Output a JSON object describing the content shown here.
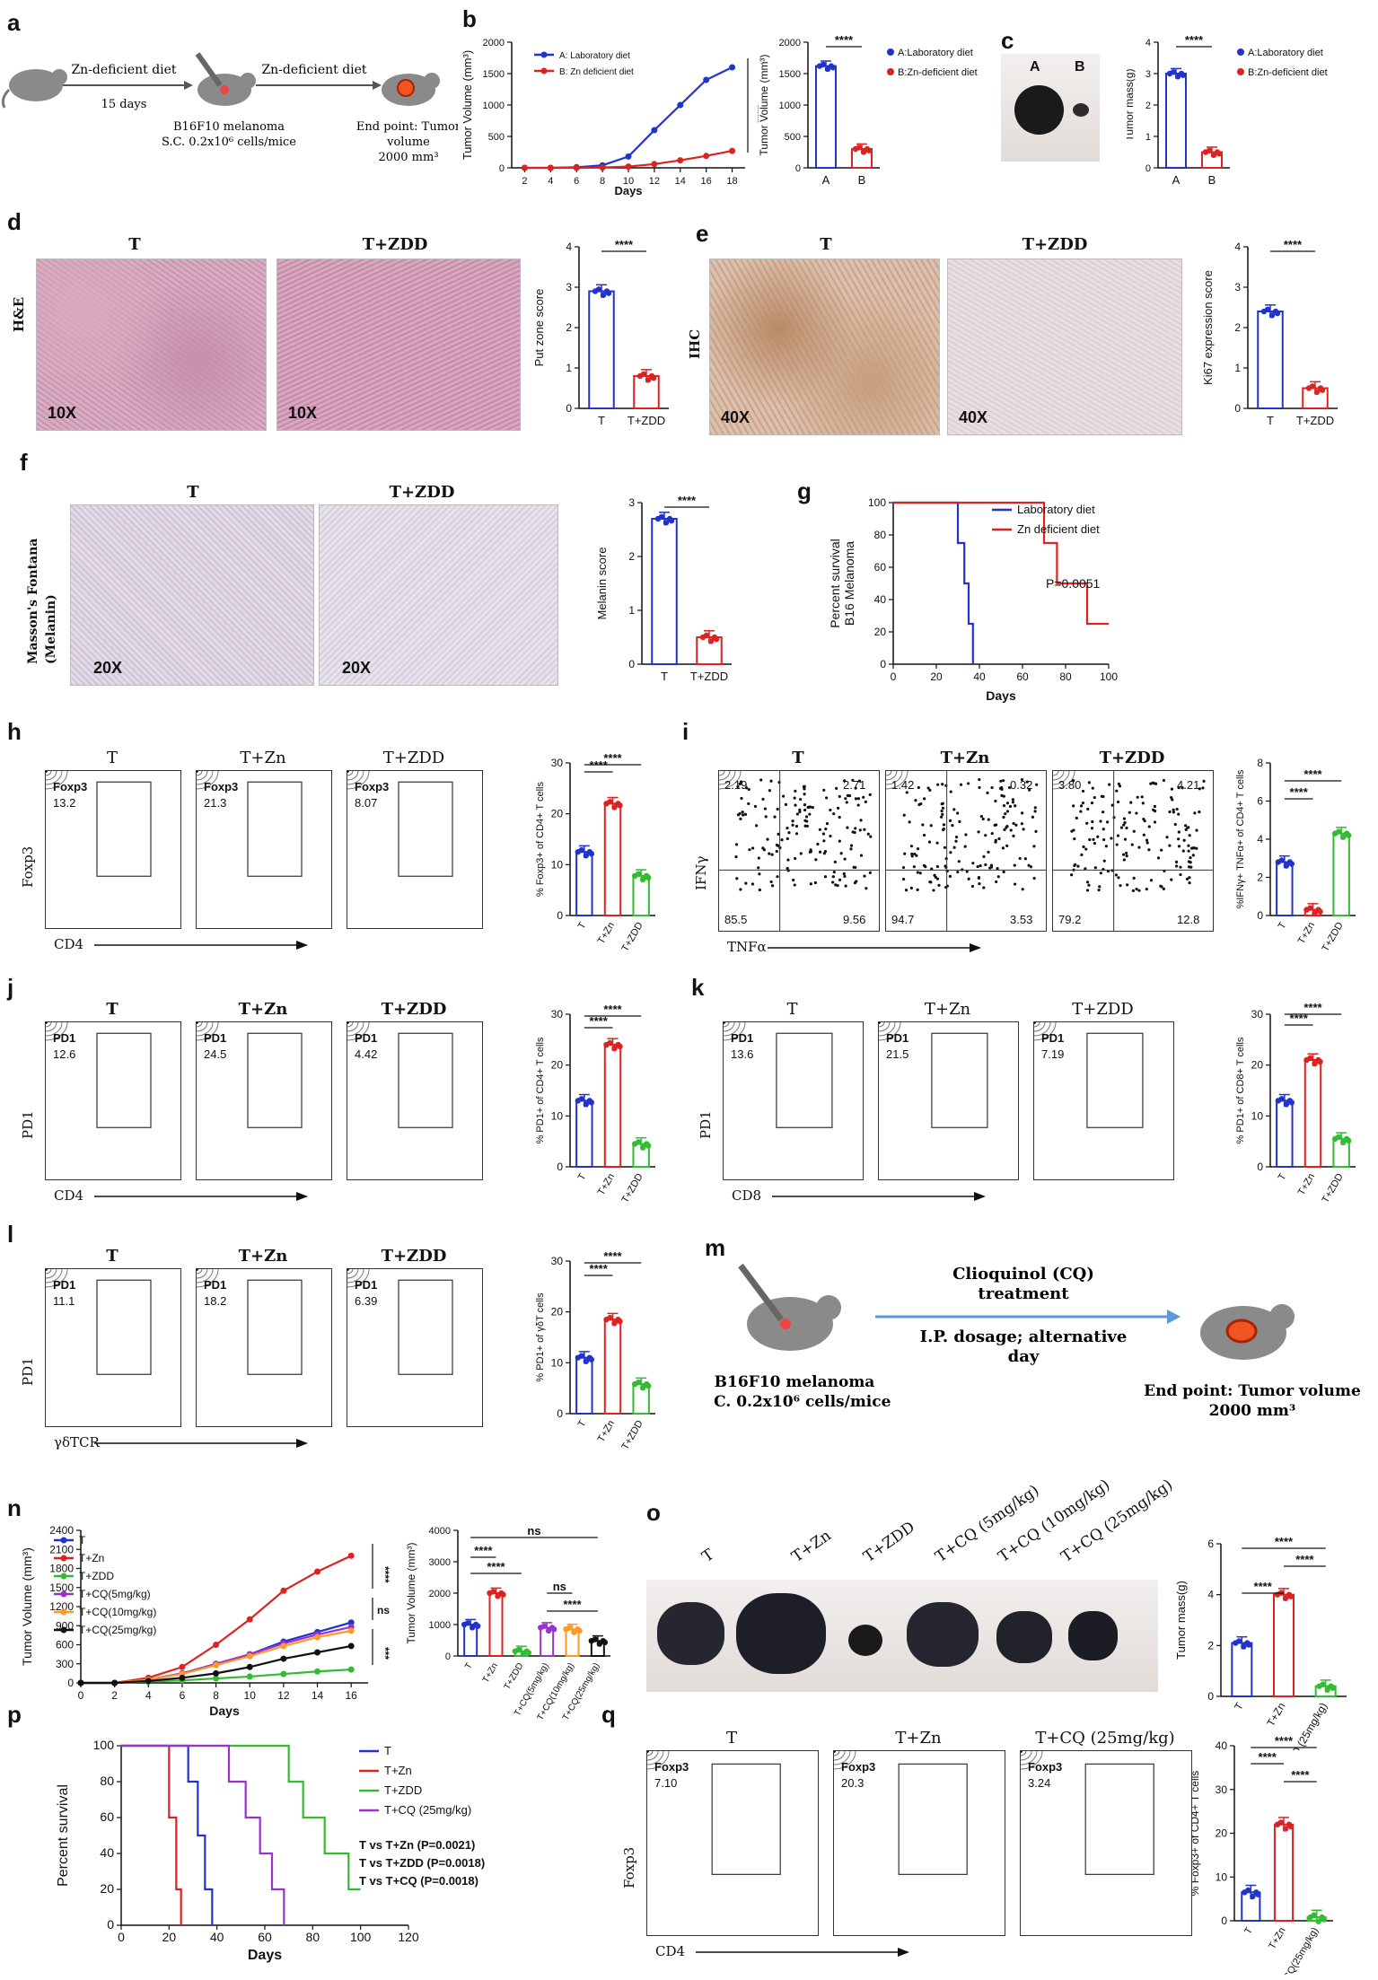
{
  "labels": {
    "a": "a",
    "b": "b",
    "c": "c",
    "d": "d",
    "e": "e",
    "f": "f",
    "g": "g",
    "h": "h",
    "i": "i",
    "j": "j",
    "k": "k",
    "l": "l",
    "m": "m",
    "n": "n",
    "o": "o",
    "p": "p",
    "q": "q"
  },
  "panel_a": {
    "step1": "Zn-deficient diet",
    "step1_dur": "15 days",
    "step2": "Zn-deficient diet",
    "inj1": "B16F10 melanoma",
    "inj2": "S.C. 0.2x10⁶ cells/mice",
    "end1": "End point: Tumor",
    "end2": "volume",
    "end3": "2000 mm³"
  },
  "panel_m": {
    "drug1": "Clioquinol (CQ)",
    "drug2": "treatment",
    "route1": "I.P. dosage; alternative",
    "route2": "day",
    "inj1": "B16F10 melanoma",
    "inj2": "S.C. 0.2x10⁶ cells/mice",
    "end1": "End point: Tumor volume",
    "end2": "2000 mm³"
  },
  "histology": {
    "d": {
      "row": "H&E",
      "t": "T",
      "t2": "T+ZDD",
      "mag1": "10X",
      "mag2": "10X"
    },
    "e": {
      "row": "IHC",
      "t": "T",
      "t2": "T+ZDD",
      "mag1": "40X",
      "mag2": "40X"
    },
    "f": {
      "row": "Masson's Fontana\n(Melanin)",
      "t": "T",
      "t2": "T+ZDD",
      "mag1": "20X",
      "mag2": "20X"
    },
    "c_photo": {
      "A": "A",
      "B": "B"
    },
    "o_photo": [
      "T",
      "T+Zn",
      "T+ZDD",
      "T+CQ (5mg/kg)",
      "T+CQ (10mg/kg)",
      "T+CQ (25mg/kg)"
    ]
  },
  "flow": {
    "h": {
      "titles": [
        "T",
        "T+Zn",
        "T+ZDD"
      ],
      "gate": "Foxp3",
      "values": [
        "13.2",
        "21.3",
        "8.07"
      ],
      "yaxis": "Foxp3",
      "xaxis": "CD4"
    },
    "i": {
      "titles": [
        "T",
        "T+Zn",
        "T+ZDD"
      ],
      "quads": [
        [
          "2.19",
          "2.71",
          "85.5",
          "9.56"
        ],
        [
          "1.42",
          "0.32",
          "94.7",
          "3.53"
        ],
        [
          "3.80",
          "4.21",
          "79.2",
          "12.8"
        ]
      ],
      "yaxis": "IFNγ",
      "xaxis": "TNFα"
    },
    "j": {
      "titles": [
        "T",
        "T+Zn",
        "T+ZDD"
      ],
      "gate": "PD1",
      "values": [
        "12.6",
        "24.5",
        "4.42"
      ],
      "yaxis": "PD1",
      "xaxis": "CD4"
    },
    "k": {
      "titles": [
        "T",
        "T+Zn",
        "T+ZDD"
      ],
      "gate": "PD1",
      "values": [
        "13.6",
        "21.5",
        "7.19"
      ],
      "yaxis": "PD1",
      "xaxis": "CD8"
    },
    "l": {
      "titles": [
        "T",
        "T+Zn",
        "T+ZDD"
      ],
      "gate": "PD1",
      "values": [
        "11.1",
        "18.2",
        "6.39"
      ],
      "yaxis": "PD1",
      "xaxis": "γδTCR"
    },
    "q": {
      "titles": [
        "T",
        "T+Zn",
        "T+CQ (25mg/kg)"
      ],
      "gate": "Foxp3",
      "values": [
        "7.10",
        "20.3",
        "3.24"
      ],
      "yaxis": "Foxp3",
      "xaxis": "CD4"
    }
  },
  "colors": {
    "blue": "#2233cc",
    "red": "#dd2222",
    "green": "#33bb33",
    "purple": "#9933cc",
    "orange": "#ff9922",
    "black": "#111111"
  },
  "chart_data": [
    {
      "id": "b1",
      "type": "line",
      "xlabel": "Days",
      "ylabel": "Tumor Volume (mm³)",
      "x": [
        2,
        4,
        6,
        8,
        10,
        12,
        14,
        16,
        18
      ],
      "xlim": [
        1,
        19
      ],
      "ylim": [
        0,
        2000
      ],
      "yticks": [
        0,
        500,
        1000,
        1500,
        2000
      ],
      "series": [
        {
          "name": "A: Laboratory diet",
          "color": "#2233cc",
          "values": [
            0,
            0,
            10,
            40,
            180,
            600,
            1000,
            1400,
            1600
          ]
        },
        {
          "name": "B: Zn deficient diet",
          "color": "#dd2222",
          "values": [
            0,
            0,
            0,
            5,
            20,
            60,
            120,
            190,
            270
          ]
        }
      ],
      "annotation": "****"
    },
    {
      "id": "b2",
      "type": "bar",
      "ylabel": "Tumor Volume (mm³)",
      "categories": [
        "A",
        "B"
      ],
      "values": [
        1620,
        300
      ],
      "colors": [
        "#2233cc",
        "#dd2222"
      ],
      "ylim": [
        0,
        2000
      ],
      "yticks": [
        0,
        500,
        1000,
        1500,
        2000
      ],
      "legend": [
        "A:Laboratory diet",
        "B:Zn-deficient diet"
      ],
      "annotation": "****"
    },
    {
      "id": "c",
      "type": "bar",
      "ylabel": "Tumor mass(g)",
      "categories": [
        "A",
        "B"
      ],
      "values": [
        3.0,
        0.5
      ],
      "colors": [
        "#2233cc",
        "#dd2222"
      ],
      "ylim": [
        0,
        4
      ],
      "yticks": [
        0,
        1,
        2,
        3,
        4
      ],
      "legend": [
        "A:Laboratory diet",
        "B:Zn-deficient diet"
      ],
      "annotation": "****"
    },
    {
      "id": "d",
      "type": "bar",
      "ylabel": "Put zone score",
      "categories": [
        "T",
        "T+ZDD"
      ],
      "values": [
        2.9,
        0.8
      ],
      "colors": [
        "#2233cc",
        "#dd2222"
      ],
      "ylim": [
        0,
        4
      ],
      "yticks": [
        0,
        1,
        2,
        3,
        4
      ],
      "annotation": "****"
    },
    {
      "id": "e",
      "type": "bar",
      "ylabel": "Ki67 expression score",
      "categories": [
        "T",
        "T+ZDD"
      ],
      "values": [
        2.4,
        0.5
      ],
      "colors": [
        "#2233cc",
        "#dd2222"
      ],
      "ylim": [
        0,
        4
      ],
      "yticks": [
        0,
        1,
        2,
        3,
        4
      ],
      "annotation": "****"
    },
    {
      "id": "f",
      "type": "bar",
      "ylabel": "Melanin score",
      "categories": [
        "T",
        "T+ZDD"
      ],
      "values": [
        2.7,
        0.5
      ],
      "colors": [
        "#2233cc",
        "#dd2222"
      ],
      "ylim": [
        0,
        3
      ],
      "yticks": [
        0,
        1,
        2,
        3
      ],
      "annotation": "****"
    },
    {
      "id": "g",
      "type": "line",
      "step": true,
      "xlabel": "Days",
      "ylabel": "Percent survival\nB16 Melanoma",
      "xlim": [
        0,
        100
      ],
      "ylim": [
        0,
        100
      ],
      "xticks": [
        0,
        20,
        40,
        60,
        80,
        100
      ],
      "yticks": [
        0,
        20,
        40,
        60,
        80,
        100
      ],
      "series": [
        {
          "name": "Laboratory diet",
          "color": "#2233cc",
          "x": [
            0,
            30,
            30,
            33,
            33,
            35,
            35,
            37,
            37
          ],
          "y": [
            100,
            100,
            75,
            75,
            50,
            50,
            25,
            25,
            0
          ]
        },
        {
          "name": "Zn deficient diet",
          "color": "#dd2222",
          "x": [
            0,
            70,
            70,
            76,
            76,
            90,
            90,
            100
          ],
          "y": [
            100,
            100,
            75,
            75,
            50,
            50,
            25,
            25
          ]
        }
      ],
      "annotation": "P=0.0051"
    },
    {
      "id": "h",
      "type": "bar",
      "ylabel": "% Foxp3+ of CD4+ T cells",
      "categories": [
        "T",
        "T+Zn",
        "T+ZDD"
      ],
      "values": [
        12.5,
        22,
        7.8
      ],
      "colors": [
        "#2233cc",
        "#dd2222",
        "#33bb33"
      ],
      "ylim": [
        0,
        30
      ],
      "yticks": [
        0,
        10,
        20,
        30
      ],
      "annotation": "****"
    },
    {
      "id": "i",
      "type": "bar",
      "ylabel": "%IFNγ+ TNFα+ of CD4+ T cells",
      "categories": [
        "T",
        "T+Zn",
        "T+ZDD"
      ],
      "values": [
        2.8,
        0.3,
        4.3
      ],
      "colors": [
        "#2233cc",
        "#dd2222",
        "#33bb33"
      ],
      "ylim": [
        0,
        8
      ],
      "yticks": [
        0,
        2,
        4,
        6,
        8
      ],
      "annotation": "****"
    },
    {
      "id": "j",
      "type": "bar",
      "ylabel": "% PD1+ of CD4+ T cells",
      "categories": [
        "T",
        "T+Zn",
        "T+ZDD"
      ],
      "values": [
        13,
        24,
        4.5
      ],
      "colors": [
        "#2233cc",
        "#dd2222",
        "#33bb33"
      ],
      "ylim": [
        0,
        30
      ],
      "yticks": [
        0,
        10,
        20,
        30
      ],
      "annotation": "****"
    },
    {
      "id": "k",
      "type": "bar",
      "ylabel": "% PD1+ of CD8+ T cells",
      "categories": [
        "T",
        "T+Zn",
        "T+ZDD"
      ],
      "values": [
        13,
        21,
        5.5
      ],
      "colors": [
        "#2233cc",
        "#dd2222",
        "#33bb33"
      ],
      "ylim": [
        0,
        30
      ],
      "yticks": [
        0,
        10,
        20,
        30
      ],
      "annotation": "****"
    },
    {
      "id": "l",
      "type": "bar",
      "ylabel": "% PD1+ of γδT cells",
      "categories": [
        "T",
        "T+Zn",
        "T+ZDD"
      ],
      "values": [
        11,
        18.5,
        5.8
      ],
      "colors": [
        "#2233cc",
        "#dd2222",
        "#33bb33"
      ],
      "ylim": [
        0,
        30
      ],
      "yticks": [
        0,
        10,
        20,
        30
      ],
      "annotation": "****"
    },
    {
      "id": "n1",
      "type": "line",
      "xlabel": "Days",
      "ylabel": "Tumor Volume (mm³)",
      "x": [
        0,
        2,
        4,
        6,
        8,
        10,
        12,
        14,
        16
      ],
      "xlim": [
        0,
        17
      ],
      "ylim": [
        0,
        2400
      ],
      "yticks": [
        0,
        300,
        600,
        900,
        1200,
        1500,
        1800,
        2100,
        2400
      ],
      "series": [
        {
          "name": "T",
          "color": "#2233cc",
          "values": [
            0,
            0,
            50,
            150,
            300,
            450,
            650,
            800,
            950
          ]
        },
        {
          "name": "T+Zn",
          "color": "#dd2222",
          "values": [
            0,
            0,
            80,
            250,
            600,
            1000,
            1450,
            1750,
            2000
          ]
        },
        {
          "name": "T+ZDD",
          "color": "#33bb33",
          "values": [
            0,
            0,
            20,
            40,
            70,
            100,
            140,
            180,
            210
          ]
        },
        {
          "name": "T+CQ(5mg/kg)",
          "color": "#9933cc",
          "values": [
            0,
            0,
            50,
            150,
            300,
            450,
            620,
            760,
            880
          ]
        },
        {
          "name": "T+CQ(10mg/kg)",
          "color": "#ff9922",
          "values": [
            0,
            0,
            50,
            140,
            280,
            420,
            580,
            720,
            820
          ]
        },
        {
          "name": "T+CQ(25mg/kg)",
          "color": "#111111",
          "values": [
            0,
            0,
            30,
            80,
            150,
            250,
            380,
            480,
            580
          ]
        }
      ],
      "annotations": [
        "****",
        "ns",
        "***"
      ]
    },
    {
      "id": "n2",
      "type": "bar",
      "ylabel": "Tumor Volume (mm³)",
      "categories": [
        "T",
        "T+Zn",
        "T+ZDD",
        "T+CQ(5mg/kg)",
        "T+CQ(10mg/kg)",
        "T+CQ(25mg/kg)"
      ],
      "values": [
        1000,
        2000,
        150,
        900,
        850,
        480
      ],
      "colors": [
        "#2233cc",
        "#dd2222",
        "#33bb33",
        "#9933cc",
        "#ff9922",
        "#111111"
      ],
      "ylim": [
        0,
        4000
      ],
      "yticks": [
        0,
        1000,
        2000,
        3000,
        4000
      ],
      "annotations": [
        "ns",
        "****",
        "****",
        "ns",
        "****"
      ]
    },
    {
      "id": "o",
      "type": "bar",
      "ylabel": "Tumor mass(g)",
      "categories": [
        "T",
        "T+Zn",
        "T+CQ (25mg/kg)"
      ],
      "values": [
        2.1,
        4.0,
        0.4
      ],
      "colors": [
        "#2233cc",
        "#dd2222",
        "#33bb33"
      ],
      "ylim": [
        0,
        6
      ],
      "yticks": [
        0,
        2,
        4,
        6
      ],
      "annotation": "****"
    },
    {
      "id": "p",
      "type": "line",
      "step": true,
      "xlabel": "Days",
      "ylabel": "Percent survival",
      "xlim": [
        0,
        120
      ],
      "ylim": [
        0,
        100
      ],
      "xticks": [
        0,
        20,
        40,
        60,
        80,
        100,
        120
      ],
      "yticks": [
        0,
        20,
        40,
        60,
        80,
        100
      ],
      "series": [
        {
          "name": "T",
          "color": "#2233cc",
          "x": [
            0,
            28,
            28,
            32,
            32,
            35,
            35,
            38,
            38
          ],
          "y": [
            100,
            100,
            80,
            80,
            50,
            50,
            20,
            20,
            0
          ]
        },
        {
          "name": "T+Zn",
          "color": "#dd2222",
          "x": [
            0,
            20,
            20,
            23,
            23,
            25,
            25
          ],
          "y": [
            100,
            100,
            60,
            60,
            20,
            20,
            0
          ]
        },
        {
          "name": "T+ZDD",
          "color": "#33bb33",
          "x": [
            0,
            70,
            70,
            76,
            76,
            85,
            85,
            95,
            95,
            100
          ],
          "y": [
            100,
            100,
            80,
            80,
            60,
            60,
            40,
            40,
            20,
            20
          ]
        },
        {
          "name": "T+CQ (25mg/kg)",
          "color": "#9933cc",
          "x": [
            0,
            45,
            45,
            52,
            52,
            58,
            58,
            63,
            63,
            68,
            68
          ],
          "y": [
            100,
            100,
            80,
            80,
            60,
            60,
            40,
            40,
            20,
            20,
            0
          ]
        }
      ],
      "annotations": [
        "T vs T+Zn (P=0.0021)",
        "T vs T+ZDD (P=0.0018)",
        "T vs T+CQ (P=0.0018)"
      ]
    },
    {
      "id": "q",
      "type": "bar",
      "ylabel": "% Foxp3+ of CD4+ T cells",
      "categories": [
        "T",
        "T+Zn",
        "T+CQ(25mg/kg)"
      ],
      "values": [
        6.5,
        22,
        0.8
      ],
      "colors": [
        "#2233cc",
        "#dd2222",
        "#33bb33"
      ],
      "ylim": [
        0,
        40
      ],
      "yticks": [
        0,
        10,
        20,
        30,
        40
      ],
      "annotation": "****"
    }
  ]
}
